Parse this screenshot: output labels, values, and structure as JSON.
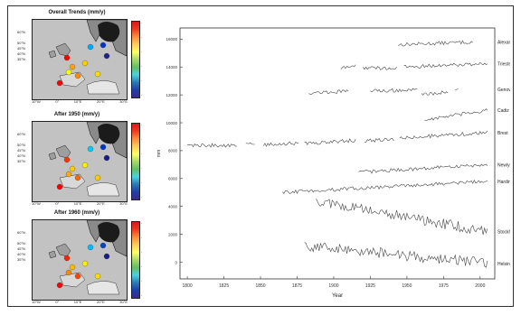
{
  "maps": [
    {
      "title": "Overall Trends (mm/y)"
    },
    {
      "title": "After 1950 (mm/y)"
    },
    {
      "title": "After 1960 (mm/y)"
    }
  ],
  "chart_data": {
    "type": "line",
    "xlabel": "Year",
    "ylabel": "mm",
    "x_ticks": [
      "1800",
      "1825",
      "1850",
      "1875",
      "1900",
      "1925",
      "1950",
      "1975",
      "2000"
    ],
    "y_ticks": [
      "0",
      "2000",
      "4000",
      "6000",
      "8000",
      "10000",
      "12000",
      "14000",
      "16000"
    ],
    "xlim": [
      1795,
      2010
    ],
    "ylim": [
      -1200,
      16800
    ],
    "grid": false,
    "colors": {
      "line": "#444444",
      "axis": "#333333"
    },
    "series": [
      {
        "name": "Alexandria",
        "segments": [
          [
            [
              1944,
              15600
            ],
            [
              1995,
              15800
            ]
          ]
        ]
      },
      {
        "name": "Trieste",
        "segments": [
          [
            [
              1905,
              13900
            ],
            [
              1915,
              14100
            ]
          ],
          [
            [
              1920,
              13950
            ],
            [
              1943,
              13900
            ]
          ],
          [
            [
              1948,
              14000
            ],
            [
              2005,
              14250
            ]
          ]
        ]
      },
      {
        "name": "Genova",
        "segments": [
          [
            [
              1883,
              12150
            ],
            [
              1910,
              12250
            ]
          ],
          [
            [
              1925,
              12300
            ],
            [
              1957,
              12350
            ]
          ],
          [
            [
              1960,
              12050
            ],
            [
              1978,
              12200
            ]
          ],
          [
            [
              1983,
              12300
            ],
            [
              1985,
              12400
            ]
          ]
        ]
      },
      {
        "name": "Cadiz III",
        "segments": [
          [
            [
              1962,
              10200
            ],
            [
              2005,
              10900
            ]
          ]
        ]
      },
      {
        "name": "Brest",
        "segments": [
          [
            [
              1800,
              8400
            ],
            [
              1834,
              8350
            ]
          ],
          [
            [
              1840,
              8500
            ],
            [
              1846,
              8450
            ]
          ],
          [
            [
              1852,
              8400
            ],
            [
              1876,
              8550
            ]
          ],
          [
            [
              1880,
              8500
            ],
            [
              1915,
              8750
            ]
          ],
          [
            [
              1921,
              8700
            ],
            [
              1941,
              8800
            ]
          ],
          [
            [
              1945,
              8900
            ],
            [
              2005,
              9300
            ]
          ]
        ]
      },
      {
        "name": "Newlyn",
        "segments": [
          [
            [
              1917,
              6450
            ],
            [
              2005,
              7000
            ]
          ]
        ]
      },
      {
        "name": "Hardinxveld",
        "segments": [
          [
            [
              1865,
              5000
            ],
            [
              2005,
              5800
            ]
          ]
        ]
      },
      {
        "name": "Stockholm",
        "segments": [
          [
            [
              1888,
              4400
            ],
            [
              2005,
              2200
            ]
          ]
        ]
      },
      {
        "name": "Helsinki",
        "segments": [
          [
            [
              1880,
              1200
            ],
            [
              2005,
              -100
            ]
          ]
        ]
      }
    ]
  }
}
